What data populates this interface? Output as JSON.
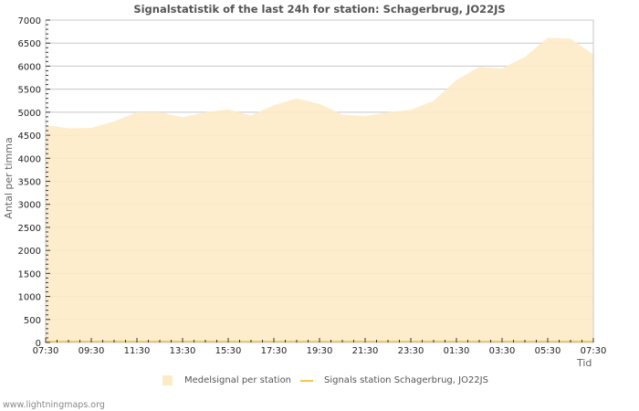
{
  "header": {
    "title": "Signalstatistik of the last 24h for station: Schagerbrug, JO22JS"
  },
  "axes": {
    "ylabel": "Antal per timma",
    "xlabel": "Tid",
    "y_ticks": [
      "0",
      "500",
      "1000",
      "1500",
      "2000",
      "2500",
      "3000",
      "3500",
      "4000",
      "4500",
      "5000",
      "5500",
      "6000",
      "6500",
      "7000"
    ],
    "x_ticks": [
      "07:30",
      "09:30",
      "11:30",
      "13:30",
      "15:30",
      "17:30",
      "19:30",
      "21:30",
      "23:30",
      "01:30",
      "03:30",
      "05:30",
      "07:30"
    ]
  },
  "legend": {
    "items": [
      {
        "label": "Medelsignal per station",
        "type": "area",
        "color": "#fdebc8"
      },
      {
        "label": "Signals station Schagerbrug, JO22JS",
        "type": "line",
        "color": "#f2c94c"
      }
    ]
  },
  "footer": {
    "credit": "www.lightningmaps.org"
  },
  "colors": {
    "area_fill": "#fdebc8",
    "line": "#f2c94c",
    "grid": "#c8c8c8",
    "frame": "#c8c8c8"
  },
  "chart_data": {
    "type": "area",
    "title": "Signalstatistik of the last 24h for station: Schagerbrug, JO22JS",
    "xlabel": "Tid",
    "ylabel": "Antal per timma",
    "ylim": [
      0,
      7000
    ],
    "grid": true,
    "legend_position": "bottom",
    "x": [
      "07:30",
      "08:30",
      "09:30",
      "10:30",
      "11:30",
      "12:30",
      "13:30",
      "14:30",
      "15:30",
      "16:30",
      "17:30",
      "18:30",
      "19:30",
      "20:30",
      "21:30",
      "22:30",
      "23:30",
      "00:30",
      "01:30",
      "02:30",
      "03:30",
      "04:30",
      "05:30",
      "06:30",
      "07:30"
    ],
    "series": [
      {
        "name": "Medelsignal per station",
        "type": "area",
        "values": [
          4720,
          4650,
          4660,
          4800,
          5000,
          5000,
          4890,
          5000,
          5060,
          4930,
          5150,
          5300,
          5180,
          4950,
          4920,
          5000,
          5050,
          5250,
          5700,
          5980,
          5950,
          6200,
          6620,
          6600,
          6250
        ]
      },
      {
        "name": "Signals station Schagerbrug, JO22JS",
        "type": "line",
        "values": [
          0,
          0,
          0,
          0,
          0,
          0,
          0,
          0,
          0,
          0,
          0,
          0,
          0,
          0,
          0,
          0,
          0,
          0,
          0,
          0,
          0,
          0,
          0,
          0,
          0
        ]
      }
    ]
  }
}
